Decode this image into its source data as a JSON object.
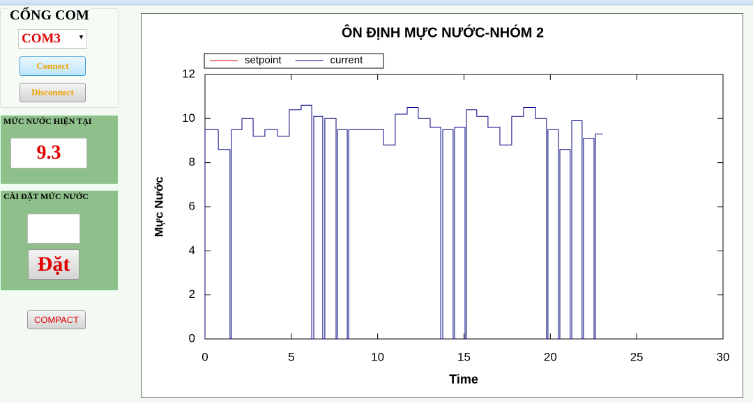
{
  "port_group": {
    "title": "CỔNG COM",
    "port": "COM3",
    "connect": "Connect",
    "disconnect": "Disconnect"
  },
  "level_group": {
    "title": "MỨC NƯỚC HIỆN TẠI",
    "value": "9.3"
  },
  "setting_group": {
    "title": "CÀI ĐẶT MỨC NƯỚC",
    "button": "Đặt"
  },
  "compact_button": "COMPACT",
  "chart_data": {
    "type": "line",
    "title": "ÔN ĐỊNH MỰC NƯỚC-NHÓM 2",
    "x_label": "Time",
    "y_label": "Mực Nước",
    "xlim": [
      0,
      30
    ],
    "xticks": [
      0,
      5,
      10,
      15,
      20,
      25,
      30
    ],
    "ylim": [
      0,
      12
    ],
    "yticks": [
      0,
      2,
      4,
      6,
      8,
      10,
      12
    ],
    "grid": false,
    "legend": "top-left",
    "series": [
      {
        "name": "setpoint",
        "color": "#cc0000",
        "x": [],
        "values": []
      },
      {
        "name": "current",
        "color": "#000080",
        "x": [
          0,
          0,
          0.77,
          0.77,
          1.45,
          1.45,
          1.53,
          1.53,
          2.14,
          2.14,
          2.79,
          2.79,
          3.47,
          3.47,
          4.2,
          4.2,
          4.88,
          4.88,
          5.57,
          5.57,
          6.18,
          6.18,
          6.3,
          6.3,
          6.82,
          6.82,
          6.94,
          6.94,
          7.59,
          7.59,
          7.67,
          7.67,
          8.24,
          8.24,
          8.32,
          8.32,
          10.34,
          10.34,
          11.02,
          11.02,
          11.71,
          11.71,
          12.35,
          12.35,
          13.04,
          13.04,
          13.65,
          13.65,
          13.77,
          13.77,
          14.37,
          14.37,
          14.45,
          14.45,
          15.06,
          15.06,
          15.14,
          15.14,
          15.74,
          15.74,
          16.39,
          16.39,
          17.08,
          17.08,
          17.76,
          17.76,
          18.45,
          18.45,
          19.14,
          19.14,
          19.78,
          19.78,
          19.86,
          19.86,
          20.47,
          20.47,
          20.55,
          20.55,
          21.15,
          21.15,
          21.24,
          21.24,
          21.84,
          21.84,
          21.92,
          21.92,
          22.53,
          22.53,
          22.61,
          22.61,
          23.05
        ],
        "values": [
          0,
          9.5,
          9.5,
          8.6,
          8.6,
          0,
          0,
          9.5,
          9.5,
          10,
          10,
          9.2,
          9.2,
          9.5,
          9.5,
          9.2,
          9.2,
          10.4,
          10.4,
          10.6,
          10.6,
          0,
          0,
          10.1,
          10.1,
          0,
          0,
          10,
          10,
          0,
          0,
          9.5,
          9.5,
          0,
          0,
          9.5,
          9.5,
          8.8,
          8.8,
          10.2,
          10.2,
          10.5,
          10.5,
          10,
          10,
          9.6,
          9.6,
          0,
          0,
          9.5,
          9.5,
          0,
          0,
          9.6,
          9.6,
          0,
          0,
          10.4,
          10.4,
          10.1,
          10.1,
          9.6,
          9.6,
          8.8,
          8.8,
          10.1,
          10.1,
          10.5,
          10.5,
          10,
          10,
          0,
          0,
          9.5,
          9.5,
          0,
          0,
          8.6,
          8.6,
          0,
          0,
          9.9,
          9.9,
          0,
          0,
          9.1,
          9.1,
          0,
          0,
          9.3,
          9.3
        ]
      }
    ]
  }
}
